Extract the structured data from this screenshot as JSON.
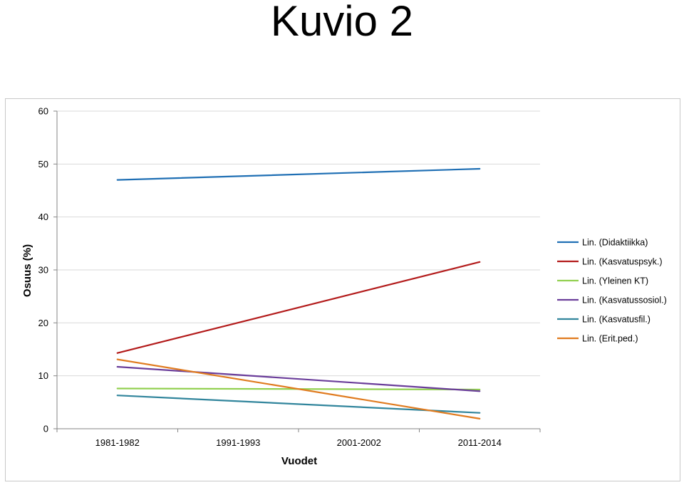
{
  "page": {
    "title": "Kuvio 2"
  },
  "chart_data": {
    "type": "line",
    "title": "Kuvio 2",
    "xlabel": "Vuodet",
    "ylabel": "Osuus (%)",
    "categories": [
      "1981-1982",
      "1991-1993",
      "2001-2002",
      "2011-2014"
    ],
    "ylim": [
      0,
      60
    ],
    "yticks": [
      0,
      10,
      20,
      30,
      40,
      50,
      60
    ],
    "grid": true,
    "legend": "right",
    "series": [
      {
        "name": "Lin. (Didaktiikka)",
        "color": "#1f6fb4",
        "start": 47.0,
        "end": 49.1
      },
      {
        "name": "Lin. (Kasvatuspsyk.)",
        "color": "#b31b1b",
        "start": 14.3,
        "end": 31.5
      },
      {
        "name": "Lin. (Yleinen KT)",
        "color": "#92d050",
        "start": 7.6,
        "end": 7.4
      },
      {
        "name": "Lin. (Kasvatussosiol.)",
        "color": "#6a3d9a",
        "start": 11.7,
        "end": 7.1
      },
      {
        "name": "Lin. (Kasvatusfil.)",
        "color": "#31859c",
        "start": 6.3,
        "end": 3.0
      },
      {
        "name": "Lin. (Erit.ped.)",
        "color": "#e07b1f",
        "start": 13.1,
        "end": 1.9
      }
    ]
  }
}
